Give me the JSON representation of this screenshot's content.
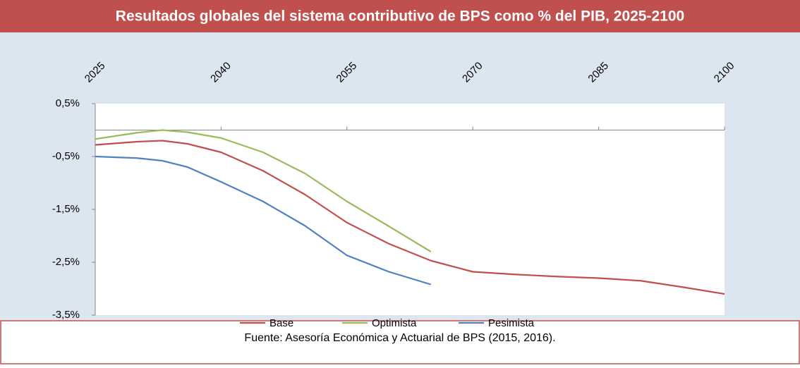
{
  "chart_data": {
    "type": "line",
    "title": "Resultados globales del sistema contributivo de BPS como % del PIB, 2025-2100",
    "source": "Fuente: Asesoría Económica y Actuarial de BPS (2015, 2016).",
    "x": [
      2025,
      2030,
      2033,
      2036,
      2040,
      2045,
      2050,
      2055,
      2060,
      2065,
      2070,
      2075,
      2080,
      2085,
      2090,
      2095,
      2100
    ],
    "series": [
      {
        "name": "Base",
        "color": "#c0504d",
        "values": [
          -0.28,
          -0.22,
          -0.2,
          -0.26,
          -0.42,
          -0.77,
          -1.22,
          -1.75,
          -2.15,
          -2.47,
          -2.68,
          -2.73,
          -2.77,
          -2.8,
          -2.85,
          -2.97,
          -3.1
        ]
      },
      {
        "name": "Optimista",
        "color": "#9bbb59",
        "values": [
          -0.17,
          -0.05,
          0,
          -0.04,
          -0.15,
          -0.42,
          -0.82,
          -1.35,
          -1.82,
          -2.3,
          null,
          null,
          null,
          null,
          null,
          null,
          null
        ]
      },
      {
        "name": "Pesimista",
        "color": "#4f81bd",
        "values": [
          -0.5,
          -0.53,
          -0.58,
          -0.7,
          -0.98,
          -1.35,
          -1.81,
          -2.37,
          -2.68,
          -2.92,
          null,
          null,
          null,
          null,
          null,
          null,
          null
        ]
      }
    ],
    "xlim": [
      2025,
      2100
    ],
    "xticks": [
      2025,
      2040,
      2055,
      2070,
      2085,
      2100
    ],
    "ylim": [
      -3.5,
      0.5
    ],
    "yticks": [
      {
        "value": 0.5,
        "label": "0,5%"
      },
      {
        "value": -0.5,
        "label": "-0,5%"
      },
      {
        "value": -1.5,
        "label": "-1,5%"
      },
      {
        "value": -2.5,
        "label": "-2,5%"
      },
      {
        "value": -3.5,
        "label": "-3,5%"
      }
    ],
    "grid": false,
    "legend": "bottom"
  }
}
